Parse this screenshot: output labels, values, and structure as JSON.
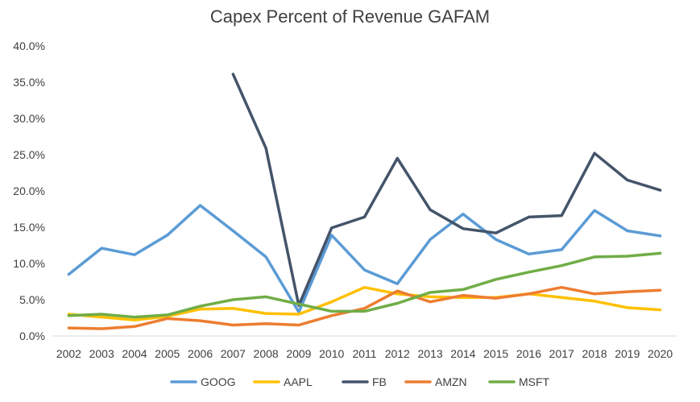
{
  "chart_data": {
    "type": "line",
    "title": "Capex Percent of Revenue GAFAM",
    "xlabel": "",
    "ylabel": "",
    "ylim": [
      0,
      0.4
    ],
    "y_tick_labels": [
      "0.0%",
      "5.0%",
      "10.0%",
      "15.0%",
      "20.0%",
      "25.0%",
      "30.0%",
      "35.0%",
      "40.0%"
    ],
    "grid": false,
    "legend_position": "bottom",
    "categories": [
      "2002",
      "2003",
      "2004",
      "2005",
      "2006",
      "2007",
      "2008",
      "2009",
      "2010",
      "2011",
      "2012",
      "2013",
      "2014",
      "2015",
      "2016",
      "2017",
      "2018",
      "2019",
      "2020"
    ],
    "series": [
      {
        "name": "GOOG",
        "color": "#5b9bd5",
        "values": [
          0.085,
          0.121,
          0.112,
          0.139,
          0.18,
          0.145,
          0.109,
          0.033,
          0.139,
          0.091,
          0.072,
          0.133,
          0.168,
          0.133,
          0.113,
          0.119,
          0.173,
          0.145,
          0.138
        ]
      },
      {
        "name": "AAPL",
        "color": "#ffc000",
        "values": [
          0.03,
          0.026,
          0.022,
          0.027,
          0.037,
          0.038,
          0.031,
          0.03,
          0.047,
          0.067,
          0.058,
          0.054,
          0.053,
          0.053,
          0.058,
          0.053,
          0.048,
          0.039,
          0.036
        ]
      },
      {
        "name": "FB",
        "color": "#44546a",
        "values": [
          null,
          null,
          null,
          null,
          null,
          0.361,
          0.259,
          0.042,
          0.149,
          0.164,
          0.245,
          0.174,
          0.148,
          0.142,
          0.164,
          0.166,
          0.252,
          0.215,
          0.201
        ]
      },
      {
        "name": "AMZN",
        "color": "#ed7d31",
        "values": [
          0.011,
          0.01,
          0.013,
          0.024,
          0.021,
          0.015,
          0.017,
          0.015,
          0.028,
          0.038,
          0.062,
          0.047,
          0.056,
          0.052,
          0.058,
          0.067,
          0.058,
          0.061,
          0.063
        ]
      },
      {
        "name": "MSFT",
        "color": "#70ad47",
        "values": [
          0.028,
          0.03,
          0.026,
          0.029,
          0.041,
          0.05,
          0.054,
          0.044,
          0.034,
          0.034,
          0.045,
          0.06,
          0.064,
          0.078,
          0.088,
          0.097,
          0.109,
          0.11,
          0.114
        ]
      }
    ]
  }
}
